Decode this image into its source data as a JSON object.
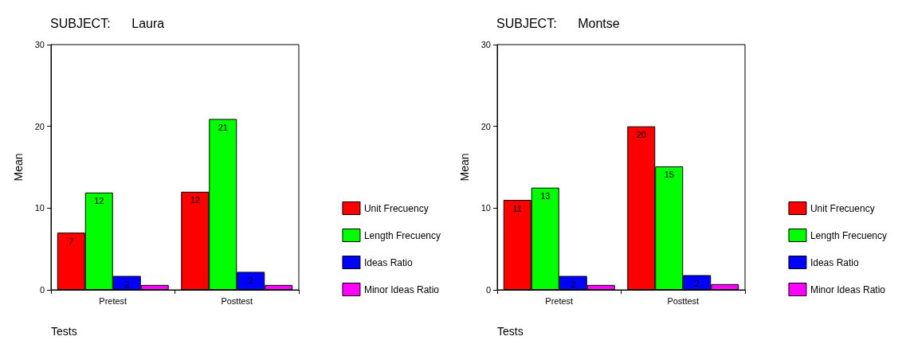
{
  "chart_data": [
    {
      "type": "bar",
      "title": "SUBJECT:      Laura",
      "xlabel": "Tests",
      "ylabel": "Mean",
      "categories": [
        "Pretest",
        "Posttest"
      ],
      "ylim": [
        0,
        30
      ],
      "yticks": [
        0,
        10,
        20,
        30
      ],
      "grid": false,
      "legend": "right",
      "series": [
        {
          "name": "Unit Frecuency",
          "color": "#ff0000",
          "values": [
            7.0,
            12.0
          ],
          "value_labels": [
            "7",
            "12"
          ]
        },
        {
          "name": "Length Frecuency",
          "color": "#00ff00",
          "values": [
            11.9,
            20.9
          ],
          "value_labels": [
            "12",
            "21"
          ]
        },
        {
          "name": "Ideas Ratio",
          "color": "#0000ff",
          "values": [
            1.7,
            2.2
          ],
          "value_labels": [
            "2",
            "2"
          ]
        },
        {
          "name": "Minor Ideas Ratio",
          "color": "#ff00ff",
          "values": [
            0.6,
            0.6
          ],
          "value_labels": [
            null,
            null
          ]
        }
      ]
    },
    {
      "type": "bar",
      "title": "SUBJECT:      Montse",
      "xlabel": "Tests",
      "ylabel": "Mean",
      "categories": [
        "Pretest",
        "Posttest"
      ],
      "ylim": [
        0,
        30
      ],
      "yticks": [
        0,
        10,
        20,
        30
      ],
      "grid": false,
      "legend": "right",
      "series": [
        {
          "name": "Unit Frecuency",
          "color": "#ff0000",
          "values": [
            11.0,
            20.0
          ],
          "value_labels": [
            "11",
            "20"
          ]
        },
        {
          "name": "Length Frecuency",
          "color": "#00ff00",
          "values": [
            12.5,
            15.1
          ],
          "value_labels": [
            "13",
            "15"
          ]
        },
        {
          "name": "Ideas Ratio",
          "color": "#0000ff",
          "values": [
            1.7,
            1.8
          ],
          "value_labels": [
            "2",
            "2"
          ]
        },
        {
          "name": "Minor Ideas Ratio",
          "color": "#ff00ff",
          "values": [
            0.6,
            0.7
          ],
          "value_labels": [
            null,
            null
          ]
        }
      ]
    }
  ]
}
